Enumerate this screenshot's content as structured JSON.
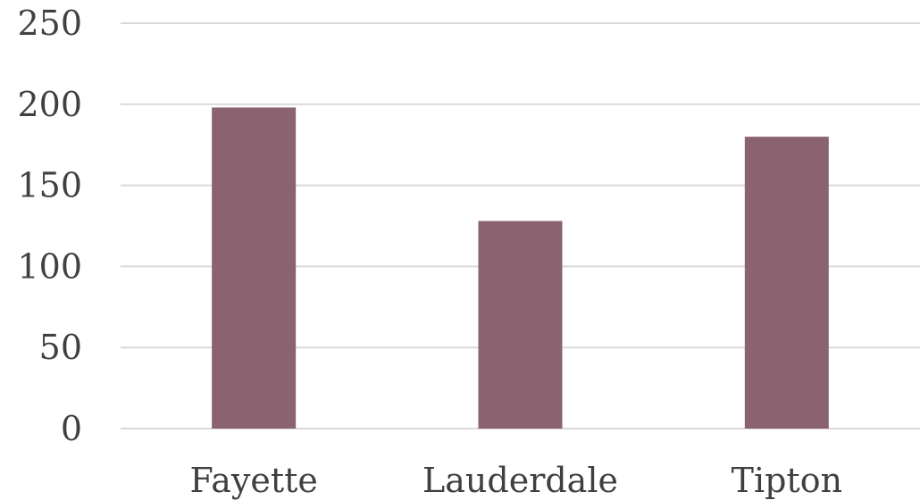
{
  "chart_data": {
    "type": "bar",
    "title": "",
    "xlabel": "",
    "ylabel": "",
    "categories": [
      "Fayette",
      "Lauderdale",
      "Tipton"
    ],
    "series": [
      {
        "values": [
          198,
          128,
          180
        ],
        "color": "#8b6270"
      }
    ],
    "ylim": [
      0,
      250
    ],
    "yticks": [
      0,
      50,
      100,
      150,
      200,
      250
    ],
    "grid": true,
    "legend": "none"
  }
}
